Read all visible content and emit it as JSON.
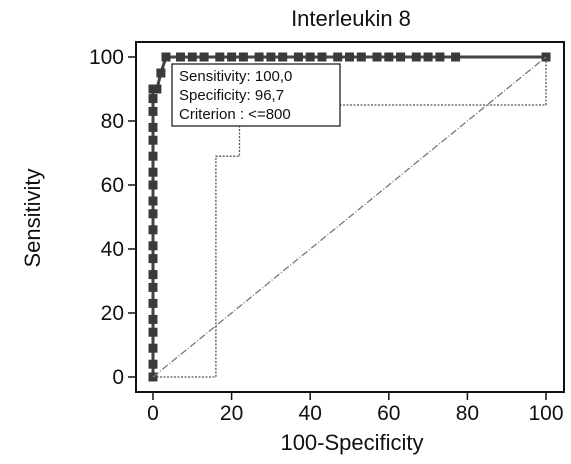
{
  "chart_data": {
    "type": "line",
    "title": "Interleukin 8",
    "xlabel": "100-Specificity",
    "ylabel": "Sensitivity",
    "xlim": [
      0,
      100
    ],
    "ylim": [
      0,
      100
    ],
    "xticks": [
      "0",
      "20",
      "40",
      "60",
      "80",
      "100"
    ],
    "yticks": [
      "0",
      "20",
      "40",
      "60",
      "80",
      "100"
    ],
    "grid": false,
    "series": [
      {
        "style": "thick-dark-square-markers",
        "color": "#444444",
        "x": [
          0,
          0,
          0,
          0,
          0,
          0,
          0,
          0,
          0,
          0,
          0,
          0,
          0,
          0,
          0,
          0,
          0,
          0,
          0,
          0,
          0,
          1,
          2,
          3.3,
          7,
          10,
          13,
          17,
          20,
          23,
          27,
          30,
          33,
          37,
          40,
          43,
          47,
          50,
          53,
          57,
          60,
          63,
          67,
          70,
          73,
          77,
          100
        ],
        "y": [
          0,
          4,
          9,
          14,
          18,
          23,
          28,
          32,
          37,
          41,
          46,
          51,
          55,
          60,
          64,
          69,
          74,
          78,
          83,
          87,
          90,
          90,
          95,
          100,
          100,
          100,
          100,
          100,
          100,
          100,
          100,
          100,
          100,
          100,
          100,
          100,
          100,
          100,
          100,
          100,
          100,
          100,
          100,
          100,
          100,
          100,
          100
        ]
      },
      {
        "style": "thin-dotted",
        "color": "#555555",
        "x": [
          0,
          16,
          16,
          22,
          22,
          25,
          25,
          100,
          100
        ],
        "y": [
          0,
          0,
          69,
          69,
          84,
          84,
          85,
          85,
          100
        ]
      },
      {
        "style": "diagonal-reference",
        "color": "#777777",
        "x": [
          0,
          100
        ],
        "y": [
          0,
          100
        ]
      }
    ],
    "annotation": {
      "lines": [
        "Sensitivity: 100,0",
        "Specificity: 96,7",
        "Criterion : <=800"
      ]
    }
  }
}
